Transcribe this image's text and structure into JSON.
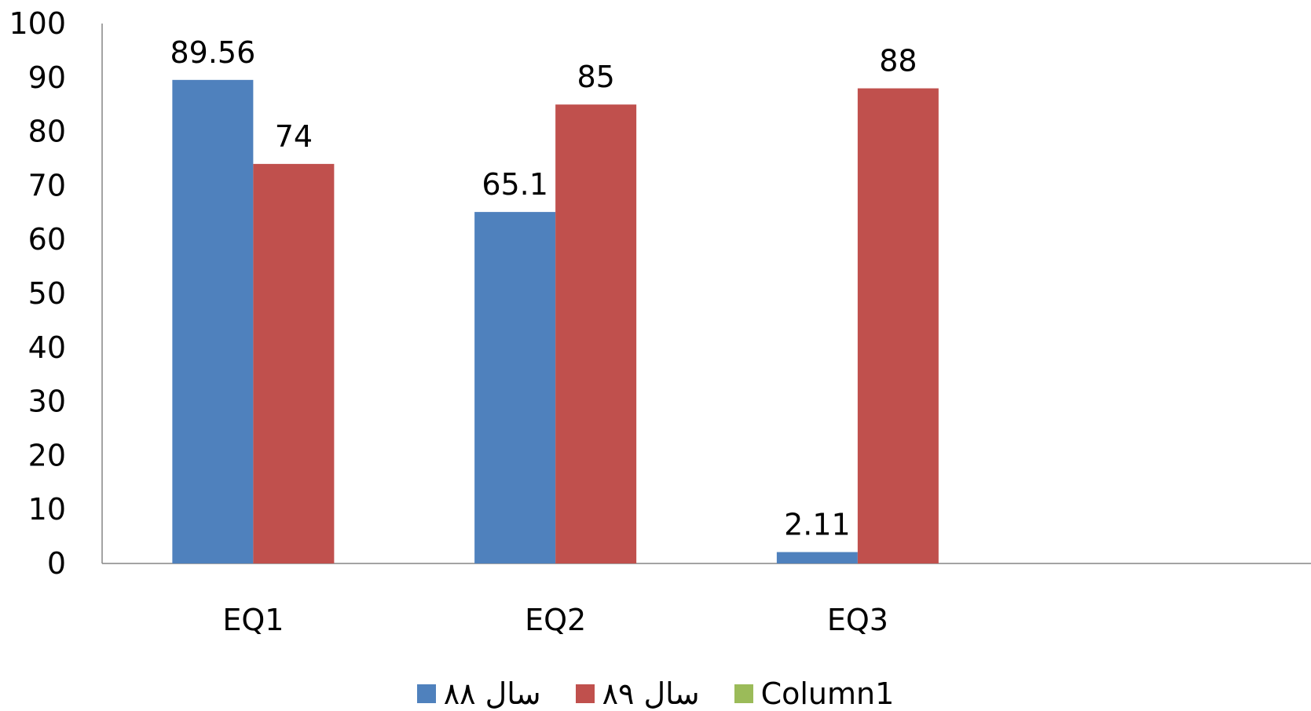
{
  "chart_data": {
    "type": "bar",
    "categories": [
      "EQ1",
      "EQ2",
      "EQ3",
      ""
    ],
    "series": [
      {
        "name": "سال ۸۸",
        "values": [
          89.56,
          65.1,
          2.11,
          null
        ],
        "color": "#4F81BD"
      },
      {
        "name": "سال ۸۹",
        "values": [
          74,
          85,
          88,
          null
        ],
        "color": "#C0504D"
      },
      {
        "name": "Column1",
        "values": [
          null,
          null,
          null,
          null
        ],
        "color": "#9BBB59"
      }
    ],
    "data_labels": [
      [
        "89.56",
        "65.1",
        "2.11",
        ""
      ],
      [
        "74",
        "85",
        "88",
        ""
      ],
      [
        "",
        "",
        "",
        ""
      ]
    ],
    "ylim": [
      0,
      100
    ],
    "yticks": [
      0,
      10,
      20,
      30,
      40,
      50,
      60,
      70,
      80,
      90,
      100
    ],
    "grid": false,
    "legend": "bottom"
  }
}
